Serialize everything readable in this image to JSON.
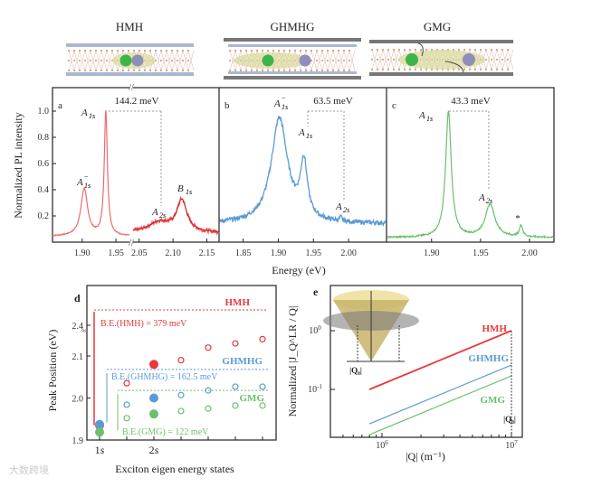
{
  "schematics": [
    {
      "label": "HMH"
    },
    {
      "label": "GHMHG"
    },
    {
      "label": "GMG"
    }
  ],
  "colors": {
    "hmh": "#e8383b",
    "ghmhg": "#5b9bd5",
    "gmg": "#6cc06a",
    "axis": "#222222",
    "guide": "#999999"
  },
  "shared_xlabel": "Energy (eV)",
  "watermark": "大数跨境",
  "chart_data": [
    {
      "panel": "a",
      "type": "line",
      "series_name": "HMH",
      "ylabel": "Normalized PL intensity",
      "yticks": [
        "0.2",
        "0.4",
        "0.6",
        "0.8",
        "1.0"
      ],
      "xlim_left": [
        1.856,
        1.97
      ],
      "xlim_right": [
        2.041,
        2.168
      ],
      "ylim": [
        0,
        1.18
      ],
      "xticks": [
        "1.90",
        "1.95",
        "2.05",
        "2.10",
        "2.15"
      ],
      "baseline_left": 0.045,
      "baseline_right": 0.07,
      "peaks_left": [
        {
          "x": 1.903,
          "h": 0.36,
          "w": 0.006
        },
        {
          "x": 1.935,
          "h": 0.95,
          "w": 0.0028
        }
      ],
      "peaks_right": [
        {
          "x": 2.08,
          "h": 0.08,
          "w": 0.02
        },
        {
          "x": 2.113,
          "h": 0.24,
          "w": 0.009
        }
      ],
      "annotations": {
        "trion": "A",
        "trion_sub": "1s",
        "trion_sup": "−",
        "a1s": "A",
        "a1s_sub": "1s",
        "a2s": "A",
        "a2s_sub": "2s",
        "b1s": "B",
        "b1s_sub": "1s",
        "gap": "144.2 meV",
        "panel_label": "a"
      }
    },
    {
      "panel": "b",
      "type": "line",
      "series_name": "GHMHG",
      "xlim": [
        1.817,
        2.054
      ],
      "ylim": [
        0,
        1.18
      ],
      "xticks": [
        "1.85",
        "1.90",
        "1.95",
        "2.00"
      ],
      "baseline": 0.14,
      "peaks": [
        {
          "x": 1.902,
          "h": 0.8,
          "w": 0.014
        },
        {
          "x": 1.937,
          "h": 0.42,
          "w": 0.006
        },
        {
          "x": 1.99,
          "h": 0.03,
          "w": 0.002
        }
      ],
      "annotations": {
        "trion": "A",
        "trion_sub": "1s",
        "trion_sup": "−",
        "a1s": "A",
        "a1s_sub": "1s",
        "a2s": "A",
        "a2s_sub": "2s",
        "gap": "63.5 meV",
        "panel_label": "b"
      }
    },
    {
      "panel": "c",
      "type": "line",
      "series_name": "GMG",
      "xlim": [
        1.854,
        2.025
      ],
      "ylim": [
        0,
        1.18
      ],
      "xticks": [
        "1.90",
        "1.95",
        "2.00"
      ],
      "baseline": 0.035,
      "peaks": [
        {
          "x": 1.917,
          "h": 0.96,
          "w": 0.0035
        },
        {
          "x": 1.96,
          "h": 0.25,
          "w": 0.006
        },
        {
          "x": 1.992,
          "h": 0.09,
          "w": 0.002
        }
      ],
      "annotations": {
        "a1s": "A",
        "a1s_sub": "1s",
        "a2s": "A",
        "a2s_sub": "2s",
        "star": "*",
        "gap": "43.3 meV",
        "panel_label": "c"
      }
    },
    {
      "panel": "d",
      "type": "scatter",
      "xlabel": "Exciton eigen energy states",
      "ylabel": "Peak Position (eV)",
      "xticks": [
        "1s",
        "2s"
      ],
      "yticks": [
        "1.9",
        "2.0",
        "2.1",
        "2.4"
      ],
      "ylim_lower": [
        1.9,
        2.16
      ],
      "series": [
        {
          "name": "HMH",
          "values": [
            1.935,
            2.035,
            2.08,
            2.09,
            2.12,
            2.13,
            2.14
          ],
          "filled": [
            true,
            false,
            true,
            false,
            false,
            false,
            false
          ],
          "continuum_label": "B.E.(HMH) = 379 meV"
        },
        {
          "name": "GHMHG",
          "values": [
            1.937,
            1.984,
            2.0,
            2.007,
            2.018,
            2.027,
            2.027
          ],
          "filled": [
            true,
            false,
            true,
            false,
            false,
            false,
            false
          ],
          "continuum": 2.068,
          "continuum_label": "B.E.(GHMHG) = 162.5 meV"
        },
        {
          "name": "GMG",
          "values": [
            1.919,
            1.952,
            1.962,
            1.969,
            1.975,
            1.982,
            1.982
          ],
          "filled": [
            true,
            false,
            true,
            false,
            false,
            false,
            false
          ],
          "continuum": 2.018,
          "continuum_label": "B.E.(GMG) = 122 meV"
        }
      ],
      "panel_label": "d"
    },
    {
      "panel": "e",
      "type": "line",
      "scale": "log-log",
      "xlabel": "|Q| (m⁻¹)",
      "ylabel": "Normalized |J_Q^LR / Q|",
      "xticks": [
        "10^6",
        "10^7"
      ],
      "yticks": [
        "10^-1",
        "10^0"
      ],
      "xlim": [
        400000.0,
        12500000.0
      ],
      "ylim": [
        0.0158,
        5.9
      ],
      "series": [
        {
          "name": "HMH",
          "x": [
            800000.0,
            10000000.0
          ],
          "y": [
            0.1,
            1.0
          ]
        },
        {
          "name": "GHMHG",
          "x": [
            800000.0,
            10000000.0
          ],
          "y": [
            0.026,
            0.26
          ]
        },
        {
          "name": "GMG",
          "x": [
            800000.0,
            10000000.0
          ],
          "y": [
            0.017,
            0.17
          ]
        }
      ],
      "marker_label": "|Q₀|",
      "panel_label": "e"
    }
  ]
}
